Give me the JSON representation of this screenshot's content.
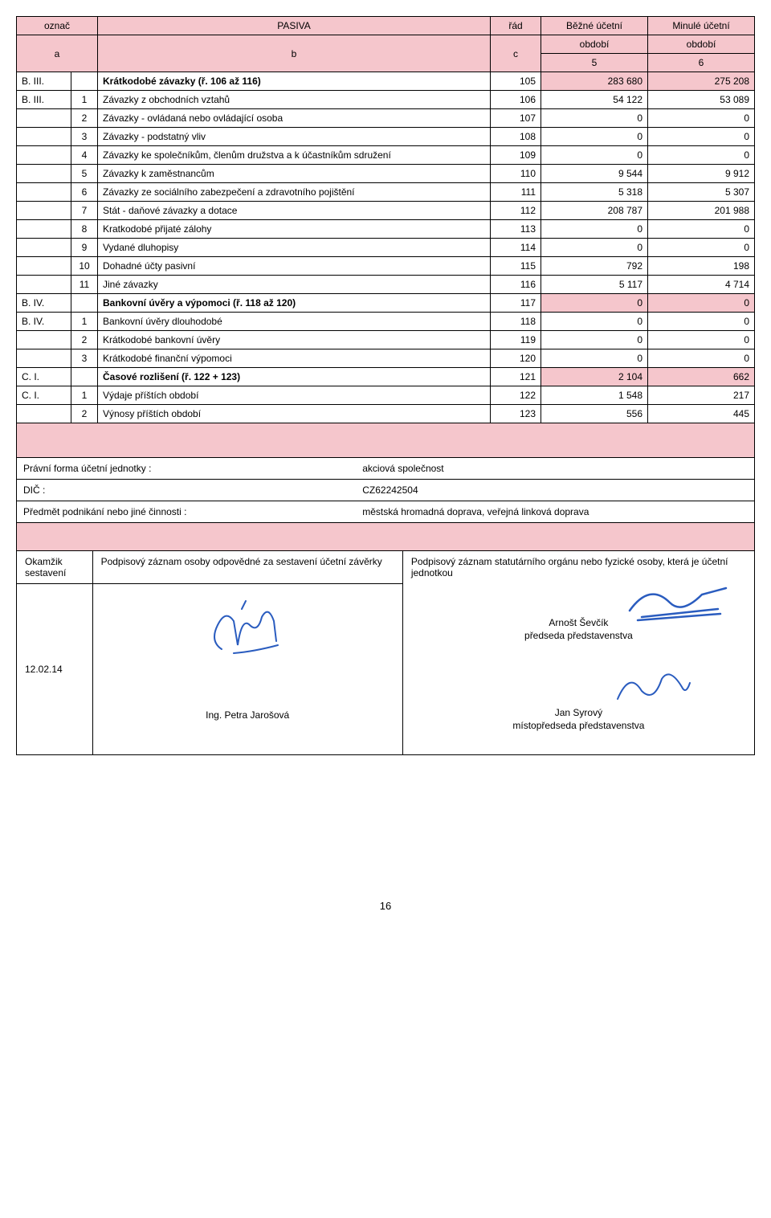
{
  "colors": {
    "header_bg": "#f5c6cc",
    "highlight_bg": "#f5c6cc",
    "border": "#000000",
    "background": "#ffffff",
    "text": "#000000",
    "sig_blue": "#2a5cbf"
  },
  "header": {
    "col1_top": "označ",
    "col1_bot": "a",
    "col2_top": "PASIVA",
    "col2_bot": "b",
    "col3_top": "řád",
    "col3_bot": "c",
    "col4_top": "Běžné účetní",
    "col4_mid": "období",
    "col4_bot": "5",
    "col5_top": "Minulé účetní",
    "col5_mid": "období",
    "col5_bot": "6"
  },
  "rows": [
    {
      "oznac": "B. III.",
      "sub": "",
      "label": "Krátkodobé závazky  (ř. 106 až 116)",
      "rad": "105",
      "v1": "283 680",
      "v2": "275 208",
      "style": "hl-bold-pink"
    },
    {
      "oznac": "B. III.",
      "sub": "1",
      "label": "Závazky z obchodních vztahů",
      "rad": "106",
      "v1": "54 122",
      "v2": "53 089",
      "style": ""
    },
    {
      "oznac": "",
      "sub": "2",
      "label": "Závazky - ovládaná nebo ovládající osoba",
      "rad": "107",
      "v1": "0",
      "v2": "0",
      "style": ""
    },
    {
      "oznac": "",
      "sub": "3",
      "label": "Závazky - podstatný vliv",
      "rad": "108",
      "v1": "0",
      "v2": "0",
      "style": ""
    },
    {
      "oznac": "",
      "sub": "4",
      "label": "Závazky ke společníkům, členům družstva  a k účastníkům sdružení",
      "rad": "109",
      "v1": "0",
      "v2": "0",
      "style": ""
    },
    {
      "oznac": "",
      "sub": "5",
      "label": "Závazky k zaměstnancům",
      "rad": "110",
      "v1": "9 544",
      "v2": "9 912",
      "style": ""
    },
    {
      "oznac": "",
      "sub": "6",
      "label": "Závazky ze sociálního zabezpečení a zdravotního pojištění",
      "rad": "111",
      "v1": "5 318",
      "v2": "5 307",
      "style": ""
    },
    {
      "oznac": "",
      "sub": "7",
      "label": "Stát - daňové závazky a dotace",
      "rad": "112",
      "v1": "208 787",
      "v2": "201 988",
      "style": ""
    },
    {
      "oznac": "",
      "sub": "8",
      "label": "Kratkodobé přijaté zálohy",
      "rad": "113",
      "v1": "0",
      "v2": "0",
      "style": ""
    },
    {
      "oznac": "",
      "sub": "9",
      "label": "Vydané dluhopisy",
      "rad": "114",
      "v1": "0",
      "v2": "0",
      "style": ""
    },
    {
      "oznac": "",
      "sub": "10",
      "label": "Dohadné účty pasivní",
      "rad": "115",
      "v1": "792",
      "v2": "198",
      "style": ""
    },
    {
      "oznac": "",
      "sub": "11",
      "label": "Jiné závazky",
      "rad": "116",
      "v1": "5 117",
      "v2": "4 714",
      "style": ""
    },
    {
      "oznac": "B. IV.",
      "sub": "",
      "label": "Bankovní úvěry a výpomoci  (ř. 118 až 120)",
      "rad": "117",
      "v1": "0",
      "v2": "0",
      "style": "hl-bold-pink"
    },
    {
      "oznac": "B. IV.",
      "sub": "1",
      "label": "Bankovní úvěry dlouhodobé",
      "rad": "118",
      "v1": "0",
      "v2": "0",
      "style": ""
    },
    {
      "oznac": "",
      "sub": "2",
      "label": "Krátkodobé bankovní úvěry",
      "rad": "119",
      "v1": "0",
      "v2": "0",
      "style": ""
    },
    {
      "oznac": "",
      "sub": "3",
      "label": "Krátkodobé finanční výpomoci",
      "rad": "120",
      "v1": "0",
      "v2": "0",
      "style": ""
    },
    {
      "oznac": "C. I.",
      "sub": "",
      "label": "Časové rozlišení (ř. 122 + 123)",
      "rad": "121",
      "v1": "2 104",
      "v2": "662",
      "style": "hl-bold-pink"
    },
    {
      "oznac": "C. I.",
      "sub": "1",
      "label": "Výdaje příštích období",
      "rad": "122",
      "v1": "1 548",
      "v2": "217",
      "style": ""
    },
    {
      "oznac": "",
      "sub": "2",
      "label": "Výnosy příštích období",
      "rad": "123",
      "v1": "556",
      "v2": "445",
      "style": ""
    }
  ],
  "meta": {
    "legal_form_label": "Právní forma účetní jednotky :",
    "legal_form_value": "akciová společnost",
    "dic_label": "DIČ :",
    "dic_value": "CZ62242504",
    "activity_label": "Předmět podnikání nebo jiné činnosti :",
    "activity_value": "městská hromadná doprava, veřejná linková doprava"
  },
  "sig": {
    "moment_label": "Okamžik sestavení",
    "moment_value": "12.02.14",
    "prep_label": "Podpisový záznam osoby odpovědné za sestavení účetní závěrky",
    "prep_name": "Ing. Petra Jarošová",
    "stat_label": "Podpisový záznam statutárního orgánu nebo fyzické osoby, která je účetní jednotkou",
    "person1_name": "Arnošt Ševčík",
    "person1_title": "předseda představenstva",
    "person2_name": "Jan Syrový",
    "person2_title": "místopředseda představenstva"
  },
  "page_number": "16"
}
